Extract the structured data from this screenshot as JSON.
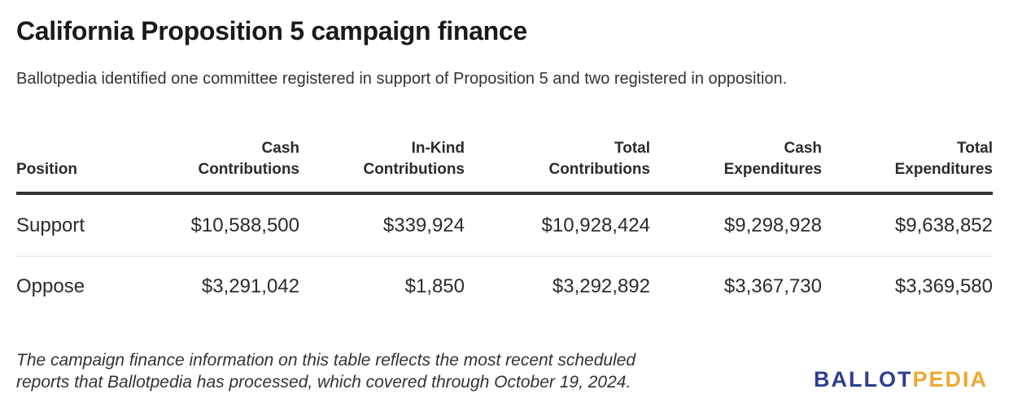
{
  "title": "California Proposition 5 campaign finance",
  "subtitle": "Ballotpedia identified one committee registered in support of Proposition 5 and two registered in opposition.",
  "chart_data": {
    "type": "table",
    "columns": [
      {
        "line1": "",
        "line2": "Position"
      },
      {
        "line1": "Cash",
        "line2": "Contributions"
      },
      {
        "line1": "In-Kind",
        "line2": "Contributions"
      },
      {
        "line1": "Total",
        "line2": "Contributions"
      },
      {
        "line1": "Cash",
        "line2": "Expenditures"
      },
      {
        "line1": "Total",
        "line2": "Expenditures"
      }
    ],
    "rows": [
      {
        "position": "Support",
        "cash_contributions": "$10,588,500",
        "inkind_contributions": "$339,924",
        "total_contributions": "$10,928,424",
        "cash_expenditures": "$9,298,928",
        "total_expenditures": "$9,638,852"
      },
      {
        "position": "Oppose",
        "cash_contributions": "$3,291,042",
        "inkind_contributions": "$1,850",
        "total_contributions": "$3,292,892",
        "cash_expenditures": "$3,367,730",
        "total_expenditures": "$3,369,580"
      }
    ]
  },
  "footnote": {
    "line1": "The campaign finance information on this table reflects the most recent scheduled",
    "line2": "reports that Ballotpedia has processed, which covered through October 19, 2024."
  },
  "logo": {
    "part1": "BALLOT",
    "part2": "PEDIA",
    "color1": "#2e3f8f",
    "color2": "#f0a830"
  }
}
